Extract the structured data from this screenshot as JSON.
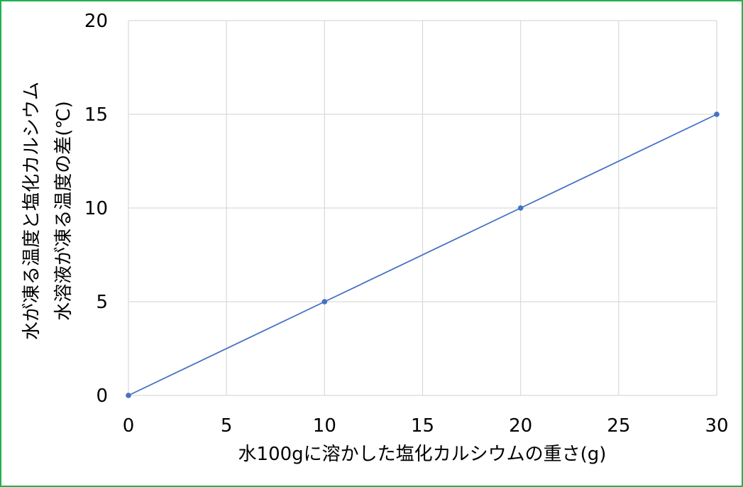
{
  "chart_data": {
    "type": "line",
    "x": [
      0,
      10,
      20,
      30
    ],
    "series": [
      {
        "values": [
          0,
          5,
          10,
          15
        ],
        "color": "#4472c4",
        "markers": true
      }
    ],
    "xlabel": "水100gに溶かした塩化カルシウムの重さ(g)",
    "ylabel": [
      "水が凍る温度と塩化カルシウム",
      "水溶液が凍る温度の差(℃)"
    ],
    "xlim": [
      0,
      30
    ],
    "ylim": [
      0,
      20
    ],
    "xticks": [
      0,
      5,
      10,
      15,
      20,
      25,
      30
    ],
    "yticks": [
      0,
      5,
      10,
      15,
      20
    ],
    "grid": true,
    "colors": {
      "grid": "#d9d9d9",
      "frame_border": "#22b14c"
    }
  }
}
